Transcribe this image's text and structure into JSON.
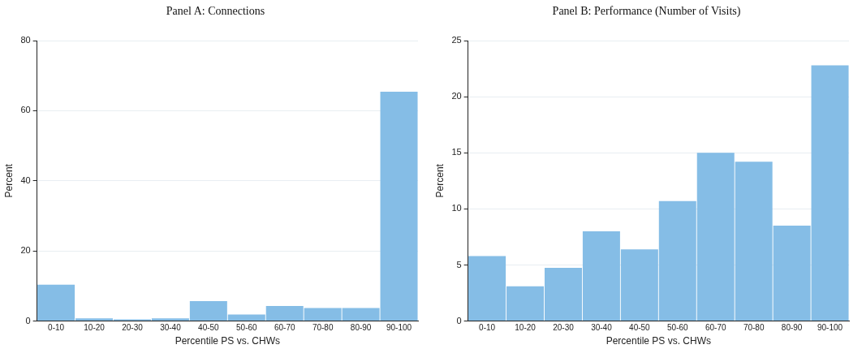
{
  "chart_data": [
    {
      "type": "bar",
      "title": "Panel A: Connections",
      "xlabel": "Percentile PS vs. CHWs",
      "ylabel": "Percent",
      "categories": [
        "0-10",
        "10-20",
        "20-30",
        "30-40",
        "40-50",
        "50-60",
        "60-70",
        "70-80",
        "80-90",
        "90-100"
      ],
      "values": [
        10.4,
        0.8,
        0.5,
        0.8,
        5.7,
        1.9,
        4.3,
        3.7,
        3.7,
        65.4
      ],
      "color": "#85bde6",
      "ylim": [
        0,
        80
      ],
      "yticks": [
        0,
        20,
        40,
        60,
        80
      ],
      "grid": "y"
    },
    {
      "type": "bar",
      "title": "Panel B: Performance (Number of Visits)",
      "xlabel": "Percentile PS vs. CHWs",
      "ylabel": "Percent",
      "categories": [
        "0-10",
        "10-20",
        "20-30",
        "30-40",
        "40-50",
        "50-60",
        "60-70",
        "70-80",
        "80-90",
        "90-100"
      ],
      "values": [
        5.8,
        3.1,
        4.75,
        8.0,
        6.4,
        10.7,
        15.0,
        14.2,
        8.5,
        22.8
      ],
      "color": "#85bde6",
      "ylim": [
        0,
        25
      ],
      "yticks": [
        0,
        5,
        10,
        15,
        20,
        25
      ],
      "grid": "y"
    }
  ]
}
